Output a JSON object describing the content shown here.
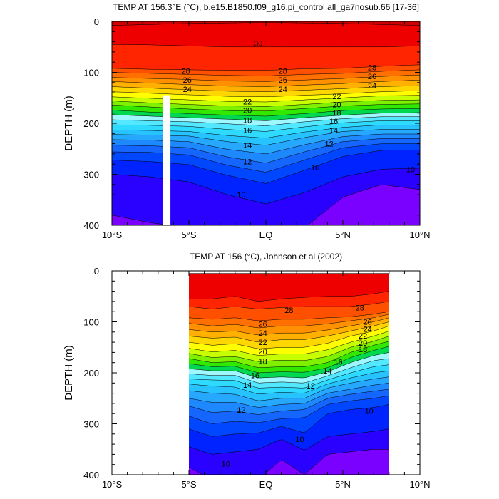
{
  "chart_data": [
    {
      "type": "heatmap",
      "title": "TEMP AT 156.3°E (°C), b.e15.B1850.f09_g16.pi_control.all_ga7nosub.66 [17-36]",
      "xlabel": "",
      "ylabel": "DEPTH (m)",
      "xlim": [
        -10,
        10
      ],
      "ylim": [
        400,
        0
      ],
      "x_ticks": [
        -10,
        -5,
        0,
        5,
        10
      ],
      "x_tick_labels": [
        "10°S",
        "5°S",
        "EQ",
        "5°N",
        "10°N"
      ],
      "y_ticks": [
        0,
        100,
        200,
        300,
        400
      ],
      "y_tick_labels": [
        "0",
        "100",
        "200",
        "300",
        "400"
      ],
      "data_extent_x": [
        -10,
        10
      ],
      "contour_levels": [
        8,
        9,
        10,
        11,
        12,
        13,
        14,
        15,
        16,
        17,
        18,
        19,
        20,
        21,
        22,
        23,
        24,
        25,
        26,
        27,
        28,
        29,
        30
      ],
      "isotherm_depths_x": [
        -10,
        -7.5,
        -5,
        -2.5,
        0,
        2.5,
        5,
        7.5,
        10
      ],
      "isotherms": [
        {
          "temp": 30,
          "depth": [
            8,
            6,
            4,
            3,
            2,
            3,
            4,
            6,
            8
          ]
        },
        {
          "temp": 29,
          "depth": [
            45,
            46,
            48,
            50,
            50,
            50,
            50,
            50,
            48
          ]
        },
        {
          "temp": 28,
          "depth": [
            92,
            94,
            95,
            96,
            96,
            93,
            92,
            88,
            85
          ]
        },
        {
          "temp": 27,
          "depth": [
            100,
            102,
            104,
            106,
            107,
            104,
            102,
            98,
            95
          ]
        },
        {
          "temp": 26,
          "depth": [
            110,
            112,
            114,
            117,
            118,
            115,
            112,
            108,
            105
          ]
        },
        {
          "temp": 25,
          "depth": [
            118,
            121,
            124,
            127,
            128,
            125,
            122,
            118,
            115
          ]
        },
        {
          "temp": 24,
          "depth": [
            128,
            131,
            134,
            137,
            138,
            135,
            132,
            128,
            126
          ]
        },
        {
          "temp": 23,
          "depth": [
            138,
            141,
            144,
            147,
            148,
            145,
            142,
            138,
            136
          ]
        },
        {
          "temp": 22,
          "depth": [
            148,
            151,
            154,
            157,
            158,
            154,
            150,
            146,
            145
          ]
        },
        {
          "temp": 21,
          "depth": [
            156,
            160,
            163,
            166,
            167,
            163,
            158,
            155,
            154
          ]
        },
        {
          "temp": 20,
          "depth": [
            164,
            168,
            172,
            175,
            176,
            171,
            166,
            163,
            162
          ]
        },
        {
          "temp": 19,
          "depth": [
            174,
            178,
            181,
            184,
            186,
            181,
            175,
            172,
            171
          ]
        },
        {
          "temp": 18,
          "depth": [
            183,
            186,
            189,
            192,
            195,
            189,
            184,
            180,
            179
          ]
        },
        {
          "temp": 17,
          "depth": [
            193,
            195,
            197,
            201,
            205,
            197,
            191,
            187,
            187
          ]
        },
        {
          "temp": 16,
          "depth": [
            203,
            204,
            206,
            212,
            216,
            207,
            199,
            195,
            195
          ]
        },
        {
          "temp": 15,
          "depth": [
            213,
            214,
            216,
            224,
            229,
            217,
            208,
            203,
            204
          ]
        },
        {
          "temp": 14,
          "depth": [
            222,
            223,
            225,
            236,
            243,
            228,
            216,
            212,
            212
          ]
        },
        {
          "temp": 13,
          "depth": [
            232,
            233,
            236,
            251,
            260,
            242,
            226,
            221,
            221
          ]
        },
        {
          "temp": 12,
          "depth": [
            243,
            244,
            248,
            266,
            278,
            256,
            236,
            230,
            230
          ]
        },
        {
          "temp": 11,
          "depth": [
            256,
            257,
            262,
            282,
            296,
            272,
            248,
            240,
            240
          ]
        },
        {
          "temp": 10,
          "depth": [
            272,
            275,
            281,
            302,
            318,
            292,
            265,
            253,
            252
          ]
        },
        {
          "temp": 9,
          "depth": [
            300,
            305,
            315,
            340,
            358,
            336,
            305,
            290,
            288
          ]
        },
        {
          "temp": 8,
          "depth": [
            380,
            395,
            405,
            410,
            410,
            405,
            345,
            320,
            330
          ]
        }
      ],
      "contour_labels": [
        {
          "text": "30",
          "x": -0.5,
          "y": 43
        },
        {
          "text": "28",
          "x": -5.2,
          "y": 97
        },
        {
          "text": "28",
          "x": 1.1,
          "y": 97
        },
        {
          "text": "28",
          "x": 6.9,
          "y": 90
        },
        {
          "text": "26",
          "x": -5.1,
          "y": 115
        },
        {
          "text": "26",
          "x": 1.1,
          "y": 115
        },
        {
          "text": "26",
          "x": 6.9,
          "y": 108
        },
        {
          "text": "24",
          "x": -5.1,
          "y": 133
        },
        {
          "text": "24",
          "x": 1.1,
          "y": 133
        },
        {
          "text": "24",
          "x": 6.9,
          "y": 126
        },
        {
          "text": "22",
          "x": -1.2,
          "y": 157
        },
        {
          "text": "22",
          "x": 4.6,
          "y": 147
        },
        {
          "text": "20",
          "x": -1.2,
          "y": 174
        },
        {
          "text": "20",
          "x": 4.6,
          "y": 163
        },
        {
          "text": "18",
          "x": -1.2,
          "y": 194
        },
        {
          "text": "18",
          "x": 4.6,
          "y": 180
        },
        {
          "text": "16",
          "x": -1.2,
          "y": 213
        },
        {
          "text": "16",
          "x": 4.4,
          "y": 196
        },
        {
          "text": "14",
          "x": -1.2,
          "y": 243
        },
        {
          "text": "14",
          "x": 4.4,
          "y": 213
        },
        {
          "text": "12",
          "x": -1.2,
          "y": 275
        },
        {
          "text": "12",
          "x": 4.1,
          "y": 240
        },
        {
          "text": "10",
          "x": 3.2,
          "y": 287
        },
        {
          "text": "10",
          "x": 9.4,
          "y": 290
        },
        {
          "text": "10",
          "x": -1.6,
          "y": 340
        }
      ],
      "no_data_bar": {
        "x": [
          -6.7,
          -6.2
        ],
        "y": [
          145,
          400
        ],
        "color": "#ffffff"
      }
    },
    {
      "type": "heatmap",
      "title": "TEMP AT 156 (°C), Johnson et al (2002)",
      "xlabel": "",
      "ylabel": "DEPTH (m)",
      "xlim": [
        -10,
        10
      ],
      "ylim": [
        400,
        0
      ],
      "x_ticks": [
        -10,
        -5,
        0,
        5,
        10
      ],
      "x_tick_labels": [
        "10°S",
        "5°S",
        "EQ",
        "5°N",
        "10°N"
      ],
      "y_ticks": [
        0,
        100,
        200,
        300,
        400
      ],
      "y_tick_labels": [
        "0",
        "100",
        "200",
        "300",
        "400"
      ],
      "data_extent_x": [
        -5,
        8
      ],
      "data_top_depth": 5,
      "contour_levels": [
        8,
        9,
        10,
        11,
        12,
        13,
        14,
        15,
        16,
        17,
        18,
        19,
        20,
        21,
        22,
        23,
        24,
        25,
        26,
        27,
        28,
        29,
        30
      ],
      "isotherm_depths_x": [
        -5,
        -3.5,
        -2,
        -0.5,
        1,
        2.5,
        4,
        5.5,
        7,
        8
      ],
      "isotherms": [
        {
          "temp": 30,
          "depth": [
            5,
            5,
            5,
            5,
            5,
            5,
            5,
            5,
            5,
            5
          ]
        },
        {
          "temp": 29,
          "depth": [
            55,
            55,
            50,
            60,
            55,
            52,
            50,
            50,
            45,
            40
          ]
        },
        {
          "temp": 28,
          "depth": [
            70,
            75,
            70,
            75,
            72,
            70,
            70,
            70,
            65,
            60
          ]
        },
        {
          "temp": 27,
          "depth": [
            92,
            95,
            92,
            98,
            95,
            95,
            92,
            90,
            85,
            80
          ]
        },
        {
          "temp": 26,
          "depth": [
            103,
            108,
            105,
            112,
            108,
            108,
            104,
            98,
            92,
            85
          ]
        },
        {
          "temp": 25,
          "depth": [
            115,
            120,
            118,
            126,
            122,
            122,
            116,
            108,
            100,
            92
          ]
        },
        {
          "temp": 24,
          "depth": [
            128,
            132,
            130,
            140,
            135,
            135,
            128,
            118,
            108,
            100
          ]
        },
        {
          "temp": 23,
          "depth": [
            140,
            146,
            143,
            153,
            150,
            150,
            142,
            128,
            118,
            108
          ]
        },
        {
          "temp": 22,
          "depth": [
            152,
            159,
            156,
            166,
            163,
            163,
            155,
            140,
            128,
            118
          ]
        },
        {
          "temp": 21,
          "depth": [
            162,
            170,
            168,
            178,
            175,
            176,
            168,
            150,
            138,
            128
          ]
        },
        {
          "temp": 20,
          "depth": [
            172,
            180,
            178,
            190,
            188,
            188,
            180,
            160,
            146,
            138
          ]
        },
        {
          "temp": 19,
          "depth": [
            182,
            188,
            187,
            200,
            198,
            199,
            190,
            170,
            156,
            148
          ]
        },
        {
          "temp": 18,
          "depth": [
            192,
            196,
            196,
            210,
            208,
            210,
            198,
            180,
            166,
            160
          ]
        },
        {
          "temp": 17,
          "depth": [
            202,
            205,
            205,
            220,
            218,
            220,
            206,
            190,
            176,
            172
          ]
        },
        {
          "temp": 16,
          "depth": [
            212,
            214,
            215,
            230,
            228,
            230,
            214,
            200,
            188,
            184
          ]
        },
        {
          "temp": 15,
          "depth": [
            222,
            226,
            228,
            242,
            238,
            240,
            222,
            210,
            200,
            196
          ]
        },
        {
          "temp": 14,
          "depth": [
            235,
            240,
            242,
            255,
            250,
            250,
            230,
            220,
            212,
            208
          ]
        },
        {
          "temp": 13,
          "depth": [
            250,
            258,
            258,
            268,
            262,
            260,
            240,
            232,
            224,
            220
          ]
        },
        {
          "temp": 12,
          "depth": [
            265,
            278,
            275,
            282,
            275,
            272,
            250,
            242,
            236,
            232
          ]
        },
        {
          "temp": 11,
          "depth": [
            285,
            300,
            295,
            298,
            290,
            288,
            262,
            255,
            250,
            245
          ]
        },
        {
          "temp": 10,
          "depth": [
            310,
            325,
            320,
            318,
            305,
            318,
            280,
            272,
            268,
            262
          ]
        },
        {
          "temp": 9,
          "depth": [
            345,
            360,
            355,
            350,
            330,
            352,
            325,
            320,
            315,
            310
          ]
        },
        {
          "temp": 8,
          "depth": [
            385,
            410,
            410,
            410,
            370,
            400,
            360,
            355,
            350,
            350
          ]
        }
      ],
      "contour_labels": [
        {
          "text": "28",
          "x": 1.5,
          "y": 77
        },
        {
          "text": "28",
          "x": 6.1,
          "y": 72
        },
        {
          "text": "26",
          "x": -0.2,
          "y": 104
        },
        {
          "text": "26",
          "x": 6.6,
          "y": 100
        },
        {
          "text": "24",
          "x": -0.2,
          "y": 122
        },
        {
          "text": "24",
          "x": 6.6,
          "y": 114
        },
        {
          "text": "22",
          "x": -0.2,
          "y": 140
        },
        {
          "text": "22",
          "x": 6.3,
          "y": 127
        },
        {
          "text": "20",
          "x": 6.3,
          "y": 141
        },
        {
          "text": "20",
          "x": -0.2,
          "y": 158
        },
        {
          "text": "18",
          "x": 6.3,
          "y": 154
        },
        {
          "text": "18",
          "x": -0.2,
          "y": 177
        },
        {
          "text": "16",
          "x": 4.7,
          "y": 178
        },
        {
          "text": "16",
          "x": -0.7,
          "y": 205
        },
        {
          "text": "14",
          "x": 4.0,
          "y": 196
        },
        {
          "text": "14",
          "x": -1.2,
          "y": 224
        },
        {
          "text": "12",
          "x": 2.9,
          "y": 225
        },
        {
          "text": "12",
          "x": -1.6,
          "y": 273
        },
        {
          "text": "10",
          "x": 6.7,
          "y": 275
        },
        {
          "text": "10",
          "x": 2.2,
          "y": 330
        },
        {
          "text": "10",
          "x": -2.6,
          "y": 378
        }
      ]
    }
  ],
  "colormap": [
    "#7a00ff",
    "#2a00ff",
    "#0023ff",
    "#0047ff",
    "#1565ff",
    "#1e88ff",
    "#27a8ff",
    "#27c3ff",
    "#2fdaff",
    "#53e8ff",
    "#9ff8ff",
    "#00d850",
    "#33e800",
    "#7ef000",
    "#c8ff00",
    "#ffff00",
    "#ffd700",
    "#ffb000",
    "#ff9000",
    "#ff7000",
    "#ff5000",
    "#ff2500",
    "#ee0000",
    "#cc0000"
  ]
}
